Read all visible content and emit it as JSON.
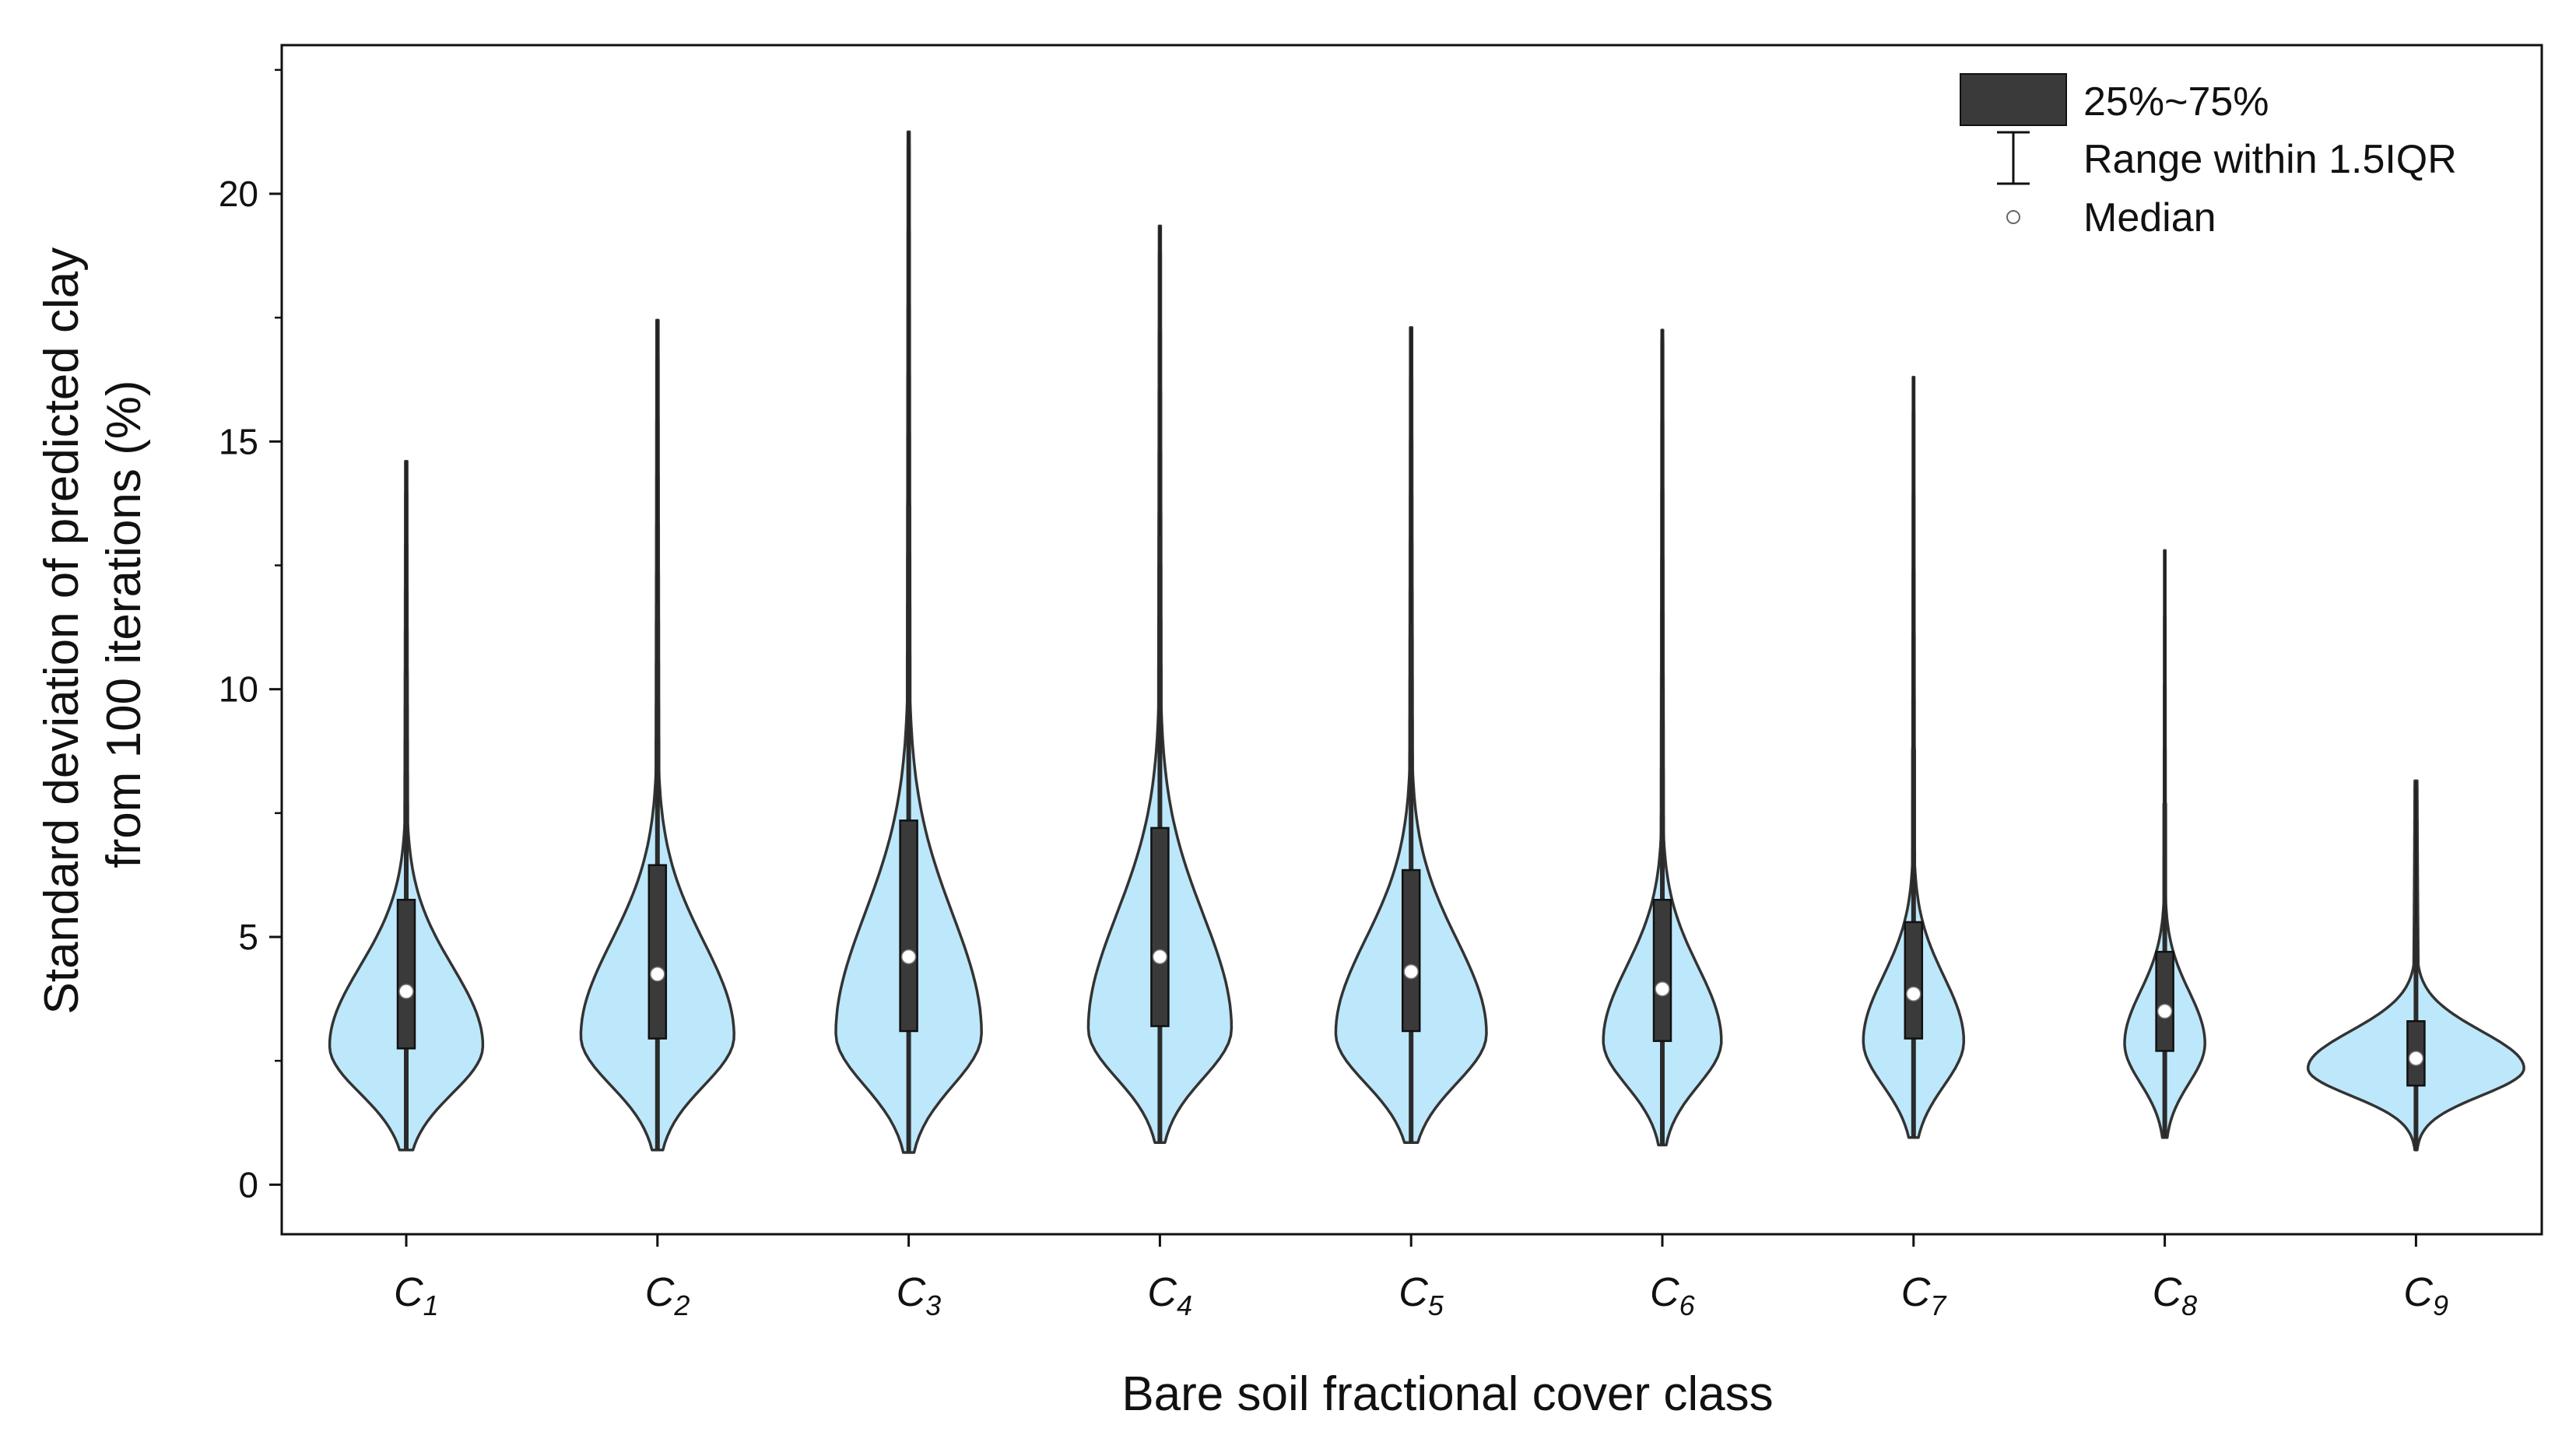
{
  "chart_data": {
    "type": "violin",
    "xlabel": "Bare soil fractional cover class",
    "ylabel_lines": [
      "Standard deviation of predicted clay",
      "from 100 iterations (%)"
    ],
    "ylim": [
      -1,
      23
    ],
    "yticks": [
      0,
      5,
      10,
      15,
      20
    ],
    "grid": false,
    "legend_position": "top-right",
    "legend": [
      {
        "kind": "box",
        "label": "25%~75%"
      },
      {
        "kind": "whisker",
        "label": "Range within 1.5IQR"
      },
      {
        "kind": "median",
        "label": "Median"
      }
    ],
    "colors": {
      "violin_fill": "#bde8fb",
      "violin_stroke": "#333333",
      "box": "#3a3a3a",
      "median": "#ffffff"
    },
    "categories": [
      {
        "base": "C",
        "sub": "1",
        "min": 0.7,
        "q1": 2.75,
        "median": 3.9,
        "q3": 5.75,
        "whisker_high": 10.25,
        "max": 14.6,
        "mode": 2.8,
        "half_width": 0.305,
        "sigma_low": 0.95,
        "sigma_high": 1.6
      },
      {
        "base": "C",
        "sub": "2",
        "min": 0.7,
        "q1": 2.95,
        "median": 4.25,
        "q3": 6.45,
        "whisker_high": 11.7,
        "max": 17.45,
        "mode": 3.0,
        "half_width": 0.305,
        "sigma_low": 1.0,
        "sigma_high": 1.9
      },
      {
        "base": "C",
        "sub": "3",
        "min": 0.65,
        "q1": 3.1,
        "median": 4.6,
        "q3": 7.35,
        "whisker_high": 13.7,
        "max": 21.25,
        "mode": 3.05,
        "half_width": 0.29,
        "sigma_low": 1.05,
        "sigma_high": 2.4
      },
      {
        "base": "C",
        "sub": "4",
        "min": 0.85,
        "q1": 3.2,
        "median": 4.6,
        "q3": 7.2,
        "whisker_high": 13.1,
        "max": 19.35,
        "mode": 3.15,
        "half_width": 0.285,
        "sigma_low": 1.0,
        "sigma_high": 2.3
      },
      {
        "base": "C",
        "sub": "5",
        "min": 0.85,
        "q1": 3.1,
        "median": 4.3,
        "q3": 6.35,
        "whisker_high": 11.3,
        "max": 17.3,
        "mode": 3.05,
        "half_width": 0.3,
        "sigma_low": 1.0,
        "sigma_high": 1.9
      },
      {
        "base": "C",
        "sub": "6",
        "min": 0.8,
        "q1": 2.9,
        "median": 3.95,
        "q3": 5.75,
        "whisker_high": 10.0,
        "max": 17.25,
        "mode": 2.9,
        "half_width": 0.235,
        "sigma_low": 0.9,
        "sigma_high": 1.5
      },
      {
        "base": "C",
        "sub": "7",
        "min": 0.95,
        "q1": 2.95,
        "median": 3.85,
        "q3": 5.3,
        "whisker_high": 8.8,
        "max": 16.3,
        "mode": 2.9,
        "half_width": 0.2,
        "sigma_low": 0.9,
        "sigma_high": 1.3
      },
      {
        "base": "C",
        "sub": "8",
        "min": 0.95,
        "q1": 2.7,
        "median": 3.5,
        "q3": 4.7,
        "whisker_high": 7.7,
        "max": 12.8,
        "mode": 2.85,
        "half_width": 0.16,
        "sigma_low": 0.8,
        "sigma_high": 1.05
      },
      {
        "base": "C",
        "sub": "9",
        "min": 0.7,
        "q1": 2.0,
        "median": 2.55,
        "q3": 3.3,
        "whisker_high": 5.25,
        "max": 8.15,
        "mode": 2.35,
        "half_width": 0.43,
        "sigma_low": 0.55,
        "sigma_high": 0.75
      }
    ]
  }
}
